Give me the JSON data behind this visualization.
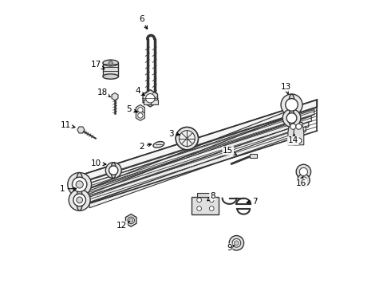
{
  "background_color": "#ffffff",
  "line_color": "#333333",
  "fig_w": 4.9,
  "fig_h": 3.6,
  "dpi": 100,
  "labels": [
    [
      1,
      0.03,
      0.34,
      0.09,
      0.34
    ],
    [
      2,
      0.31,
      0.49,
      0.355,
      0.5
    ],
    [
      3,
      0.415,
      0.535,
      0.455,
      0.53
    ],
    [
      4,
      0.295,
      0.685,
      0.33,
      0.665
    ],
    [
      5,
      0.265,
      0.62,
      0.305,
      0.61
    ],
    [
      6,
      0.31,
      0.94,
      0.335,
      0.895
    ],
    [
      7,
      0.71,
      0.295,
      0.67,
      0.29
    ],
    [
      8,
      0.56,
      0.315,
      0.54,
      0.295
    ],
    [
      9,
      0.62,
      0.13,
      0.645,
      0.145
    ],
    [
      10,
      0.148,
      0.43,
      0.195,
      0.425
    ],
    [
      11,
      0.04,
      0.565,
      0.085,
      0.555
    ],
    [
      12,
      0.24,
      0.21,
      0.268,
      0.225
    ],
    [
      13,
      0.82,
      0.7,
      0.83,
      0.665
    ],
    [
      14,
      0.845,
      0.51,
      0.85,
      0.535
    ],
    [
      15,
      0.615,
      0.475,
      0.655,
      0.455
    ],
    [
      16,
      0.875,
      0.36,
      0.88,
      0.385
    ],
    [
      17,
      0.148,
      0.78,
      0.188,
      0.758
    ],
    [
      18,
      0.172,
      0.68,
      0.208,
      0.66
    ]
  ]
}
